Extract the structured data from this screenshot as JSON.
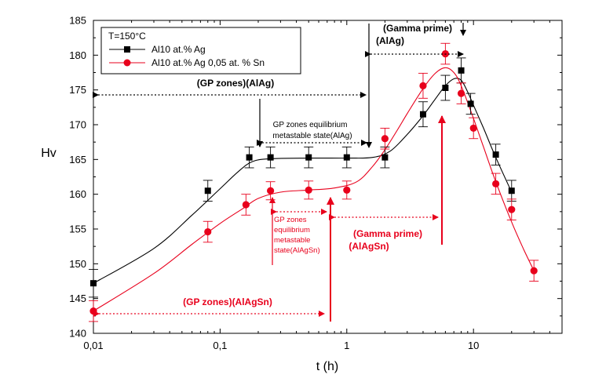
{
  "chart_data": {
    "type": "line",
    "title": "",
    "xlabel": "t (h)",
    "ylabel": "Hv",
    "xscale": "log",
    "xlim": [
      0.01,
      50
    ],
    "ylim": [
      140,
      185
    ],
    "x_ticks": [
      0.01,
      0.1,
      1,
      10
    ],
    "x_tick_labels": [
      "0,01",
      "0,1",
      "1",
      "10"
    ],
    "y_ticks": [
      140,
      145,
      150,
      155,
      160,
      165,
      170,
      175,
      180,
      185
    ],
    "y_tick_labels": [
      "140",
      "145",
      "150",
      "155",
      "160",
      "165",
      "170",
      "175",
      "180",
      "185"
    ],
    "grid": false,
    "legend": {
      "title": "T=150°C",
      "placement": "top-left",
      "entries": [
        "Al10 at.%  Ag",
        "Al10 at.%  Ag 0,05 at. % Sn"
      ]
    },
    "series": [
      {
        "name": "Al10 at.%  Ag",
        "color": "#000000",
        "marker": "square",
        "x": [
          0.01,
          0.08,
          0.17,
          0.25,
          0.5,
          1,
          2,
          4,
          6,
          8,
          9.5,
          15,
          20
        ],
        "y": [
          147.2,
          160.5,
          165.3,
          165.3,
          165.3,
          165.3,
          165.3,
          171.5,
          175.3,
          177.8,
          173.0,
          165.7,
          160.5
        ],
        "err": [
          2.0,
          1.5,
          1.5,
          1.5,
          1.5,
          1.5,
          1.5,
          1.8,
          1.8,
          1.8,
          1.5,
          1.5,
          1.5
        ],
        "fit_x": [
          0.01,
          0.03,
          0.06,
          0.1,
          0.14,
          0.18,
          0.25,
          0.5,
          1,
          1.6,
          2.2,
          3,
          4,
          5,
          6,
          7,
          8,
          9,
          10,
          12,
          15,
          20
        ],
        "fit_y": [
          147.2,
          152.2,
          157.0,
          160.8,
          163.3,
          164.7,
          165.1,
          165.2,
          165.2,
          165.3,
          166.2,
          168.6,
          171.3,
          173.7,
          175.6,
          176.6,
          176.4,
          174.7,
          172.8,
          169.5,
          165.3,
          160.3
        ]
      },
      {
        "name": "Al10 at.%  Ag 0,05 at. % Sn",
        "color": "#e8001c",
        "marker": "circle",
        "x": [
          0.01,
          0.08,
          0.16,
          0.25,
          0.5,
          1,
          2,
          4,
          6,
          8,
          10,
          15,
          20,
          30
        ],
        "y": [
          143.2,
          154.6,
          158.5,
          160.5,
          160.6,
          160.6,
          168.0,
          175.6,
          180.2,
          174.5,
          169.5,
          161.5,
          157.8,
          149.0
        ],
        "err": [
          1.5,
          1.5,
          1.5,
          1.3,
          1.3,
          1.3,
          1.5,
          1.8,
          1.5,
          1.5,
          1.5,
          1.5,
          1.5,
          1.5
        ],
        "fit_x": [
          0.01,
          0.03,
          0.06,
          0.1,
          0.15,
          0.2,
          0.3,
          0.5,
          0.8,
          1.2,
          1.6,
          2,
          2.5,
          3,
          4,
          5,
          6,
          7,
          8,
          10,
          12,
          15,
          20,
          25,
          30
        ],
        "fit_y": [
          143.2,
          148.6,
          152.8,
          155.8,
          157.9,
          159.4,
          160.3,
          160.6,
          160.9,
          161.8,
          164.0,
          166.4,
          169.2,
          171.6,
          175.2,
          177.4,
          178.2,
          177.5,
          175.6,
          170.9,
          166.8,
          161.8,
          156.0,
          152.0,
          149.0
        ]
      }
    ],
    "annotations": [
      {
        "id": "gp-agag",
        "text": "(GP zones)(AlAg)",
        "color": "black"
      },
      {
        "id": "gamma-alag-1",
        "text": "(Gamma prime)",
        "color": "black"
      },
      {
        "id": "gamma-alag-2",
        "text": "(AlAg)",
        "color": "black"
      },
      {
        "id": "gp-eq-alag-1",
        "text": "GP zones equilibrium",
        "color": "black"
      },
      {
        "id": "gp-eq-alag-2",
        "text": "metastable state(AlAg)",
        "color": "black"
      },
      {
        "id": "gp-eq-alagsn-1",
        "text": "GP zones",
        "color": "red"
      },
      {
        "id": "gp-eq-alagsn-2",
        "text": "equilibrium",
        "color": "red"
      },
      {
        "id": "gp-eq-alagsn-3",
        "text": "metastable",
        "color": "red"
      },
      {
        "id": "gp-eq-alagsn-4",
        "text": "state(AlAgSn)",
        "color": "red"
      },
      {
        "id": "gamma-alagsn-1",
        "text": "(Gamma prime)",
        "color": "red"
      },
      {
        "id": "gamma-alagsn-2",
        "text": "(AlAgSn)",
        "color": "red"
      },
      {
        "id": "gp-alagsn",
        "text": "(GP zones)(AlAgSn)",
        "color": "red"
      }
    ]
  }
}
